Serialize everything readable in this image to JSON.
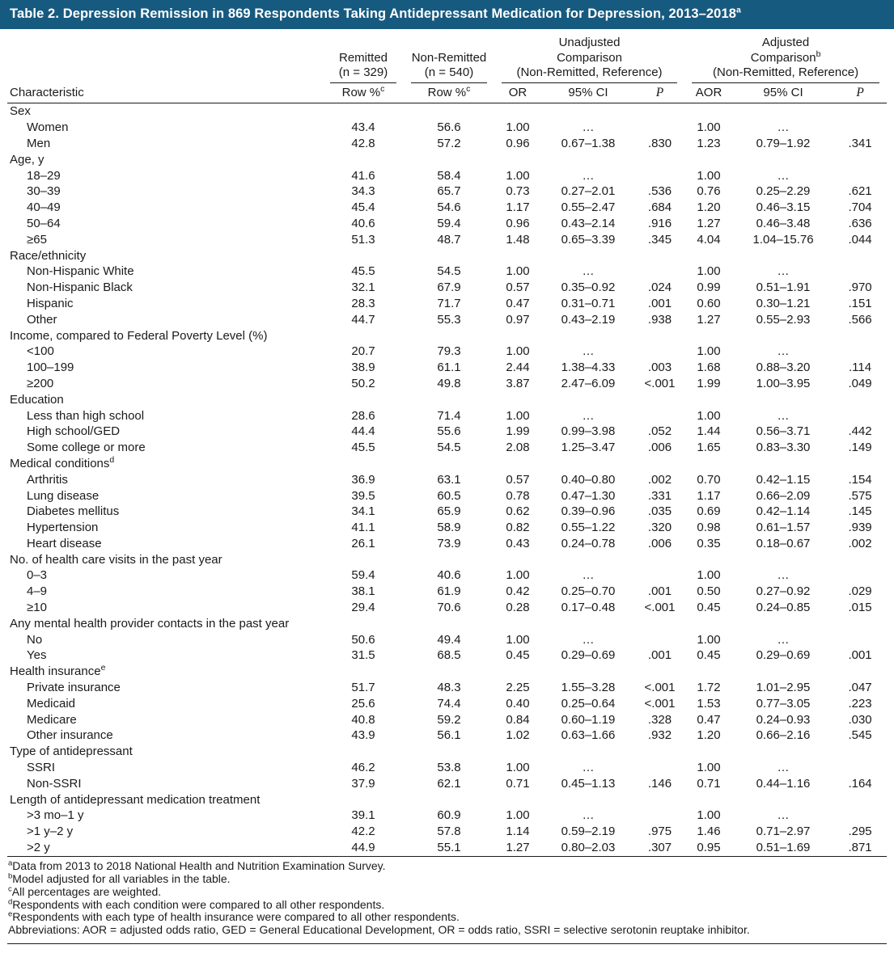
{
  "colors": {
    "title_bar_bg": "#175A80",
    "title_bar_text": "#FFFFFF",
    "rule_color": "#1A1A1A",
    "body_text": "#1A1A1A"
  },
  "title": "Table 2. Depression Remission in 869 Respondents Taking Antidepressant Medication for Depression, 2013–2018",
  "title_sup": "a",
  "header": {
    "characteristic": "Characteristic",
    "remitted": {
      "line1": "Remitted",
      "line2": "(n = 329)"
    },
    "non_remitted": {
      "line1": "Non-Remitted",
      "line2": "(n = 540)"
    },
    "unadjusted": {
      "line1": "Unadjusted",
      "line2": "Comparison",
      "line3": "(Non-Remitted, Reference)"
    },
    "adjusted": {
      "line1": "Adjusted",
      "line2": "Comparison",
      "sup": "b",
      "line3": "(Non-Remitted, Reference)"
    },
    "row_pct": "Row %",
    "row_pct_sup": "c",
    "or": "OR",
    "ci": "95% CI",
    "p": "P",
    "aor": "AOR"
  },
  "groups": [
    {
      "label": "Sex",
      "sup": "",
      "rows": [
        {
          "label": "Women",
          "remitted": "43.4",
          "non_remitted": "56.6",
          "or": "1.00",
          "or_ci": "…",
          "or_p": "",
          "aor": "1.00",
          "aor_ci": "…",
          "aor_p": ""
        },
        {
          "label": "Men",
          "remitted": "42.8",
          "non_remitted": "57.2",
          "or": "0.96",
          "or_ci": "0.67–1.38",
          "or_p": ".830",
          "aor": "1.23",
          "aor_ci": "0.79–1.92",
          "aor_p": ".341"
        }
      ]
    },
    {
      "label": "Age, y",
      "sup": "",
      "rows": [
        {
          "label": "18–29",
          "remitted": "41.6",
          "non_remitted": "58.4",
          "or": "1.00",
          "or_ci": "…",
          "or_p": "",
          "aor": "1.00",
          "aor_ci": "…",
          "aor_p": ""
        },
        {
          "label": "30–39",
          "remitted": "34.3",
          "non_remitted": "65.7",
          "or": "0.73",
          "or_ci": "0.27–2.01",
          "or_p": ".536",
          "aor": "0.76",
          "aor_ci": "0.25–2.29",
          "aor_p": ".621"
        },
        {
          "label": "40–49",
          "remitted": "45.4",
          "non_remitted": "54.6",
          "or": "1.17",
          "or_ci": "0.55–2.47",
          "or_p": ".684",
          "aor": "1.20",
          "aor_ci": "0.46–3.15",
          "aor_p": ".704"
        },
        {
          "label": "50–64",
          "remitted": "40.6",
          "non_remitted": "59.4",
          "or": "0.96",
          "or_ci": "0.43–2.14",
          "or_p": ".916",
          "aor": "1.27",
          "aor_ci": "0.46–3.48",
          "aor_p": ".636"
        },
        {
          "label": "≥65",
          "remitted": "51.3",
          "non_remitted": "48.7",
          "or": "1.48",
          "or_ci": "0.65–3.39",
          "or_p": ".345",
          "aor": "4.04",
          "aor_ci": "1.04–15.76",
          "aor_p": ".044"
        }
      ]
    },
    {
      "label": "Race/ethnicity",
      "sup": "",
      "rows": [
        {
          "label": "Non-Hispanic White",
          "remitted": "45.5",
          "non_remitted": "54.5",
          "or": "1.00",
          "or_ci": "…",
          "or_p": "",
          "aor": "1.00",
          "aor_ci": "…",
          "aor_p": ""
        },
        {
          "label": "Non-Hispanic Black",
          "remitted": "32.1",
          "non_remitted": "67.9",
          "or": "0.57",
          "or_ci": "0.35–0.92",
          "or_p": ".024",
          "aor": "0.99",
          "aor_ci": "0.51–1.91",
          "aor_p": ".970"
        },
        {
          "label": "Hispanic",
          "remitted": "28.3",
          "non_remitted": "71.7",
          "or": "0.47",
          "or_ci": "0.31–0.71",
          "or_p": ".001",
          "aor": "0.60",
          "aor_ci": "0.30–1.21",
          "aor_p": ".151"
        },
        {
          "label": "Other",
          "remitted": "44.7",
          "non_remitted": "55.3",
          "or": "0.97",
          "or_ci": "0.43–2.19",
          "or_p": ".938",
          "aor": "1.27",
          "aor_ci": "0.55–2.93",
          "aor_p": ".566"
        }
      ]
    },
    {
      "label": "Income, compared to Federal Poverty Level (%)",
      "sup": "",
      "rows": [
        {
          "label": "<100",
          "remitted": "20.7",
          "non_remitted": "79.3",
          "or": "1.00",
          "or_ci": "…",
          "or_p": "",
          "aor": "1.00",
          "aor_ci": "…",
          "aor_p": ""
        },
        {
          "label": "100–199",
          "remitted": "38.9",
          "non_remitted": "61.1",
          "or": "2.44",
          "or_ci": "1.38–4.33",
          "or_p": ".003",
          "aor": "1.68",
          "aor_ci": "0.88–3.20",
          "aor_p": ".114"
        },
        {
          "label": "≥200",
          "remitted": "50.2",
          "non_remitted": "49.8",
          "or": "3.87",
          "or_ci": "2.47–6.09",
          "or_p": "<.001",
          "aor": "1.99",
          "aor_ci": "1.00–3.95",
          "aor_p": ".049"
        }
      ]
    },
    {
      "label": "Education",
      "sup": "",
      "rows": [
        {
          "label": "Less than high school",
          "remitted": "28.6",
          "non_remitted": "71.4",
          "or": "1.00",
          "or_ci": "…",
          "or_p": "",
          "aor": "1.00",
          "aor_ci": "…",
          "aor_p": ""
        },
        {
          "label": "High school/GED",
          "remitted": "44.4",
          "non_remitted": "55.6",
          "or": "1.99",
          "or_ci": "0.99–3.98",
          "or_p": ".052",
          "aor": "1.44",
          "aor_ci": "0.56–3.71",
          "aor_p": ".442"
        },
        {
          "label": "Some college or more",
          "remitted": "45.5",
          "non_remitted": "54.5",
          "or": "2.08",
          "or_ci": "1.25–3.47",
          "or_p": ".006",
          "aor": "1.65",
          "aor_ci": "0.83–3.30",
          "aor_p": ".149"
        }
      ]
    },
    {
      "label": "Medical conditions",
      "sup": "d",
      "rows": [
        {
          "label": "Arthritis",
          "remitted": "36.9",
          "non_remitted": "63.1",
          "or": "0.57",
          "or_ci": "0.40–0.80",
          "or_p": ".002",
          "aor": "0.70",
          "aor_ci": "0.42–1.15",
          "aor_p": ".154"
        },
        {
          "label": "Lung disease",
          "remitted": "39.5",
          "non_remitted": "60.5",
          "or": "0.78",
          "or_ci": "0.47–1.30",
          "or_p": ".331",
          "aor": "1.17",
          "aor_ci": "0.66–2.09",
          "aor_p": ".575"
        },
        {
          "label": "Diabetes mellitus",
          "remitted": "34.1",
          "non_remitted": "65.9",
          "or": "0.62",
          "or_ci": "0.39–0.96",
          "or_p": ".035",
          "aor": "0.69",
          "aor_ci": "0.42–1.14",
          "aor_p": ".145"
        },
        {
          "label": "Hypertension",
          "remitted": "41.1",
          "non_remitted": "58.9",
          "or": "0.82",
          "or_ci": "0.55–1.22",
          "or_p": ".320",
          "aor": "0.98",
          "aor_ci": "0.61–1.57",
          "aor_p": ".939"
        },
        {
          "label": "Heart disease",
          "remitted": "26.1",
          "non_remitted": "73.9",
          "or": "0.43",
          "or_ci": "0.24–0.78",
          "or_p": ".006",
          "aor": "0.35",
          "aor_ci": "0.18–0.67",
          "aor_p": ".002"
        }
      ]
    },
    {
      "label": "No. of health care visits in the past year",
      "sup": "",
      "rows": [
        {
          "label": "0–3",
          "remitted": "59.4",
          "non_remitted": "40.6",
          "or": "1.00",
          "or_ci": "…",
          "or_p": "",
          "aor": "1.00",
          "aor_ci": "…",
          "aor_p": ""
        },
        {
          "label": "4–9",
          "remitted": "38.1",
          "non_remitted": "61.9",
          "or": "0.42",
          "or_ci": "0.25–0.70",
          "or_p": ".001",
          "aor": "0.50",
          "aor_ci": "0.27–0.92",
          "aor_p": ".029"
        },
        {
          "label": "≥10",
          "remitted": "29.4",
          "non_remitted": "70.6",
          "or": "0.28",
          "or_ci": "0.17–0.48",
          "or_p": "<.001",
          "aor": "0.45",
          "aor_ci": "0.24–0.85",
          "aor_p": ".015"
        }
      ]
    },
    {
      "label": "Any mental health provider contacts in the past year",
      "sup": "",
      "rows": [
        {
          "label": "No",
          "remitted": "50.6",
          "non_remitted": "49.4",
          "or": "1.00",
          "or_ci": "…",
          "or_p": "",
          "aor": "1.00",
          "aor_ci": "…",
          "aor_p": ""
        },
        {
          "label": "Yes",
          "remitted": "31.5",
          "non_remitted": "68.5",
          "or": "0.45",
          "or_ci": "0.29–0.69",
          "or_p": ".001",
          "aor": "0.45",
          "aor_ci": "0.29–0.69",
          "aor_p": ".001"
        }
      ]
    },
    {
      "label": "Health insurance",
      "sup": "e",
      "rows": [
        {
          "label": "Private insurance",
          "remitted": "51.7",
          "non_remitted": "48.3",
          "or": "2.25",
          "or_ci": "1.55–3.28",
          "or_p": "<.001",
          "aor": "1.72",
          "aor_ci": "1.01–2.95",
          "aor_p": ".047"
        },
        {
          "label": "Medicaid",
          "remitted": "25.6",
          "non_remitted": "74.4",
          "or": "0.40",
          "or_ci": "0.25–0.64",
          "or_p": "<.001",
          "aor": "1.53",
          "aor_ci": "0.77–3.05",
          "aor_p": ".223"
        },
        {
          "label": "Medicare",
          "remitted": "40.8",
          "non_remitted": "59.2",
          "or": "0.84",
          "or_ci": "0.60–1.19",
          "or_p": ".328",
          "aor": "0.47",
          "aor_ci": "0.24–0.93",
          "aor_p": ".030"
        },
        {
          "label": "Other insurance",
          "remitted": "43.9",
          "non_remitted": "56.1",
          "or": "1.02",
          "or_ci": "0.63–1.66",
          "or_p": ".932",
          "aor": "1.20",
          "aor_ci": "0.66–2.16",
          "aor_p": ".545"
        }
      ]
    },
    {
      "label": "Type of antidepressant",
      "sup": "",
      "rows": [
        {
          "label": "SSRI",
          "remitted": "46.2",
          "non_remitted": "53.8",
          "or": "1.00",
          "or_ci": "…",
          "or_p": "",
          "aor": "1.00",
          "aor_ci": "…",
          "aor_p": ""
        },
        {
          "label": "Non-SSRI",
          "remitted": "37.9",
          "non_remitted": "62.1",
          "or": "0.71",
          "or_ci": "0.45–1.13",
          "or_p": ".146",
          "aor": "0.71",
          "aor_ci": "0.44–1.16",
          "aor_p": ".164"
        }
      ]
    },
    {
      "label": "Length of antidepressant medication treatment",
      "sup": "",
      "rows": [
        {
          "label": ">3 mo–1 y",
          "remitted": "39.1",
          "non_remitted": "60.9",
          "or": "1.00",
          "or_ci": "…",
          "or_p": "",
          "aor": "1.00",
          "aor_ci": "…",
          "aor_p": ""
        },
        {
          "label": ">1 y–2 y",
          "remitted": "42.2",
          "non_remitted": "57.8",
          "or": "1.14",
          "or_ci": "0.59–2.19",
          "or_p": ".975",
          "aor": "1.46",
          "aor_ci": "0.71–2.97",
          "aor_p": ".295"
        },
        {
          "label": ">2 y",
          "remitted": "44.9",
          "non_remitted": "55.1",
          "or": "1.27",
          "or_ci": "0.80–2.03",
          "or_p": ".307",
          "aor": "0.95",
          "aor_ci": "0.51–1.69",
          "aor_p": ".871"
        }
      ]
    }
  ],
  "footnotes": [
    {
      "sup": "a",
      "text": "Data from 2013 to 2018 National Health and Nutrition Examination Survey."
    },
    {
      "sup": "b",
      "text": "Model adjusted for all variables in the table."
    },
    {
      "sup": "c",
      "text": "All percentages are weighted."
    },
    {
      "sup": "d",
      "text": "Respondents with each condition were compared to all other respondents."
    },
    {
      "sup": "e",
      "text": "Respondents with each type of health insurance were compared to all other respondents."
    },
    {
      "sup": "",
      "text": "Abbreviations: AOR = adjusted odds ratio, GED = General Educational Development, OR = odds ratio, SSRI = selective serotonin reuptake inhibitor."
    }
  ]
}
